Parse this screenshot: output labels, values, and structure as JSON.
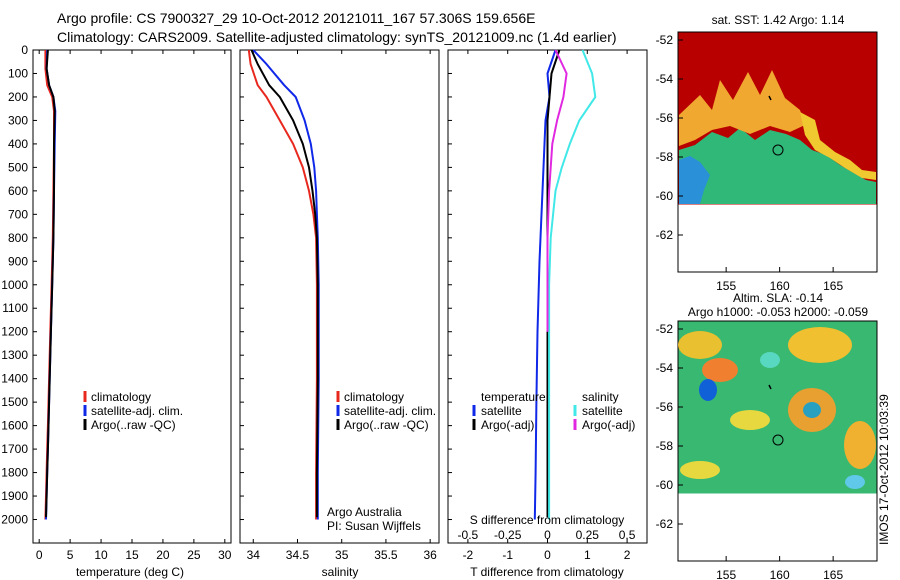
{
  "header": {
    "line1": "Argo profile: CS 7900327_29 10-Oct-2012 20121011_167 57.306S 159.656E",
    "line2": "Climatology: CARS2009. Satellite-adjusted climatology: synTS_20121009.nc (1.4d earlier)"
  },
  "colors": {
    "climatology": "#e8281e",
    "satellite": "#1028e8",
    "argo": "#000000",
    "salinity_satellite": "#40e8e8",
    "salinity_argo": "#e028e0"
  },
  "depth_axis": {
    "ticks": [
      "0",
      "100",
      "200",
      "300",
      "400",
      "500",
      "600",
      "700",
      "800",
      "900",
      "1000",
      "1100",
      "1200",
      "1300",
      "1400",
      "1500",
      "1600",
      "1700",
      "1800",
      "1900",
      "2000"
    ],
    "ylim": [
      2100,
      0
    ]
  },
  "panels": {
    "temperature": {
      "xlabel": "temperature (deg C)",
      "xticks": [
        "0",
        "5",
        "10",
        "15",
        "20",
        "25",
        "30"
      ],
      "legend": [
        "climatology",
        "satellite-adj. clim.",
        "Argo(..raw -QC)"
      ]
    },
    "salinity": {
      "xlabel": "salinity",
      "xticks": [
        "34",
        "34.5",
        "35",
        "35.5",
        "36"
      ],
      "legend": [
        "climatology",
        "satellite-adj. clim.",
        "Argo(..raw -QC)"
      ],
      "note1": "Argo Australia",
      "note2": "PI: Susan Wijffels"
    },
    "difference": {
      "xlabel": "T difference from climatology",
      "xticks": [
        "-2",
        "-1",
        "0",
        "1",
        "2"
      ],
      "top_label": "S difference from climatology",
      "top_ticks": [
        "-0.5",
        "-0.25",
        "0",
        "0.25",
        "0.5"
      ],
      "legend_temp_title": "temperature",
      "legend_sal_title": "salinity",
      "legend_temp": [
        "satellite",
        "Argo(-adj)"
      ],
      "legend_sal": [
        "satellite",
        "Argo(-adj)"
      ]
    }
  },
  "maps": {
    "sst": {
      "title": "sat. SST: 1.42  Argo: 1.14"
    },
    "sla": {
      "title1": "Altim. SLA: -0.14",
      "title2": "Argo h1000: -0.053 h2000: -0.059"
    },
    "lat_ticks": [
      "-52",
      "-54",
      "-56",
      "-58",
      "-60",
      "-62"
    ],
    "lon_ticks": [
      "155",
      "160",
      "165"
    ]
  },
  "stamp": "IMOS 17-Oct-2012 10:03:39",
  "chart_data": [
    {
      "type": "line",
      "title": "",
      "xlabel": "temperature (deg C)",
      "ylabel": "",
      "xlim": [
        -1,
        31
      ],
      "ylim": [
        2100,
        0
      ],
      "series": [
        {
          "name": "climatology",
          "x": [
            1.0,
            1.0,
            1.3,
            2.1,
            2.4,
            2.4,
            2.3,
            2.2,
            2.0,
            1.8,
            1.6,
            1.5,
            1.4,
            1.3,
            1.2,
            1.1,
            1.0
          ],
          "y": [
            0,
            80,
            150,
            200,
            260,
            400,
            600,
            800,
            1000,
            1200,
            1400,
            1500,
            1600,
            1700,
            1800,
            1900,
            2000
          ]
        },
        {
          "name": "satellite-adj. clim.",
          "x": [
            1.3,
            1.2,
            1.6,
            2.3,
            2.6,
            2.5,
            2.4,
            2.3,
            2.1,
            1.9,
            1.7,
            1.6,
            1.5,
            1.4,
            1.3,
            1.2,
            1.1
          ],
          "y": [
            0,
            80,
            150,
            200,
            260,
            400,
            600,
            800,
            1000,
            1200,
            1400,
            1500,
            1600,
            1700,
            1800,
            1900,
            2000
          ]
        },
        {
          "name": "Argo(..raw -QC)",
          "x": [
            1.4,
            1.2,
            1.6,
            2.3,
            2.5,
            2.4,
            2.4,
            2.3,
            2.1,
            1.9,
            1.7,
            1.6,
            1.5,
            1.4,
            1.3,
            1.2,
            1.1
          ],
          "y": [
            0,
            80,
            150,
            200,
            260,
            400,
            600,
            800,
            1000,
            1200,
            1400,
            1500,
            1600,
            1700,
            1800,
            1900,
            1990
          ]
        }
      ]
    },
    {
      "type": "line",
      "title": "",
      "xlabel": "salinity",
      "ylabel": "",
      "xlim": [
        33.85,
        36.1
      ],
      "ylim": [
        2100,
        0
      ],
      "series": [
        {
          "name": "climatology",
          "x": [
            33.95,
            33.97,
            34.05,
            34.15,
            34.3,
            34.45,
            34.56,
            34.63,
            34.68,
            34.71,
            34.72,
            34.72,
            34.71,
            34.71
          ],
          "y": [
            0,
            60,
            150,
            200,
            300,
            400,
            500,
            600,
            700,
            800,
            1000,
            1400,
            1800,
            2000
          ]
        },
        {
          "name": "satellite-adj. clim.",
          "x": [
            34.0,
            34.15,
            34.35,
            34.48,
            34.58,
            34.65,
            34.69,
            34.71,
            34.72,
            34.73,
            34.74,
            34.74,
            34.73,
            34.73
          ],
          "y": [
            0,
            60,
            150,
            200,
            300,
            400,
            500,
            600,
            700,
            800,
            1000,
            1400,
            1800,
            2000
          ]
        },
        {
          "name": "Argo(..raw -QC)",
          "x": [
            33.98,
            34.05,
            34.18,
            34.3,
            34.45,
            34.56,
            34.63,
            34.67,
            34.7,
            34.72,
            34.73,
            34.73,
            34.72,
            34.72
          ],
          "y": [
            0,
            60,
            150,
            200,
            300,
            400,
            500,
            600,
            700,
            800,
            1000,
            1400,
            1800,
            1990
          ]
        }
      ]
    },
    {
      "type": "line",
      "title": "",
      "xlabel": "T difference from climatology",
      "ylabel": "",
      "xlim": [
        -2.5,
        2.5
      ],
      "ylim": [
        2100,
        0
      ],
      "series": [
        {
          "name": "temperature satellite",
          "x": [
            0.2,
            0.0,
            0.05,
            -0.05,
            -0.1,
            -0.15,
            -0.2,
            -0.25,
            -0.28,
            -0.3,
            -0.32
          ],
          "y": [
            0,
            100,
            200,
            300,
            500,
            700,
            900,
            1200,
            1500,
            1800,
            2000
          ]
        },
        {
          "name": "temperature Argo(-adj)",
          "x": [
            0.3,
            0.1,
            0.05,
            0.0,
            0.0,
            0.0,
            0.0,
            0.0,
            0.0,
            0.0,
            0.0
          ],
          "y": [
            0,
            100,
            200,
            300,
            500,
            700,
            900,
            1200,
            1500,
            1800,
            1990
          ]
        },
        {
          "name": "salinity satellite",
          "x": [
            0.22,
            0.28,
            0.3,
            0.2,
            0.14,
            0.09,
            0.05,
            0.02,
            0.01,
            0.01,
            0.01
          ],
          "y": [
            0,
            100,
            200,
            300,
            400,
            500,
            600,
            800,
            1000,
            1500,
            2000
          ]
        },
        {
          "name": "salinity Argo(-adj)",
          "x": [
            0.05,
            0.12,
            0.1,
            0.06,
            0.03,
            0.02,
            0.01,
            0.0,
            0.0,
            0.0
          ],
          "y": [
            0,
            100,
            200,
            300,
            400,
            500,
            600,
            800,
            1000,
            1200
          ]
        }
      ]
    }
  ]
}
